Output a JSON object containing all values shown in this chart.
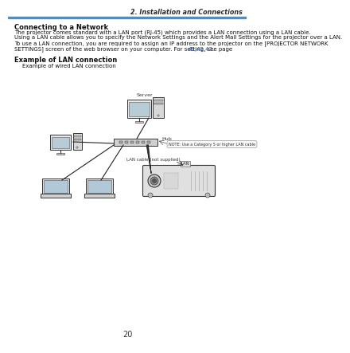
{
  "bg_color": "#ffffff",
  "header_line_color": "#4a90c4",
  "header_text": "2. Installation and Connections",
  "header_text_color": "#2c2c2c",
  "section_title": "Connecting to a Network",
  "body_lines": [
    "The projector comes standard with a LAN port (RJ-45) which provides a LAN connection using a LAN cable.",
    "Using a LAN cable allows you to specify the Network Settings and the Alert Mail Settings for the projector over a LAN.",
    "To use a LAN connection, you are required to assign an IP address to the projector on the [PROJECTOR NETWORK",
    "SETTINGS] screen of the web browser on your computer. For setting, see page "
  ],
  "link_text": "41,42,43.",
  "section2_title": "Example of LAN connection",
  "sub_text": "Example of wired LAN connection",
  "page_number": "20",
  "note_text": "NOTE: Use a Category 5 or higher LAN cable",
  "lan_cable_text": "LAN cable (not supplied)",
  "lan_label": "LAN",
  "server_label": "Server",
  "hub_label": "Hub"
}
